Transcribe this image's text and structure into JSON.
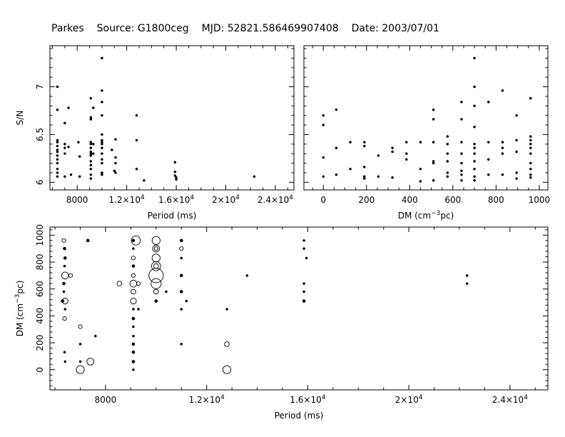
{
  "header": {
    "telescope": "Parkes",
    "source": "Source: G1800ceg",
    "mjd": "MJD: 52821.586469907408",
    "date": "Date: 2003/07/01"
  },
  "chart_data": [
    {
      "id": "snr_vs_period",
      "type": "scatter",
      "xlabel": "Period (ms)",
      "ylabel": "S/N",
      "xlim": [
        5800,
        25500
      ],
      "ylim": [
        5.92,
        7.43
      ],
      "xticks": [
        {
          "v": 8000,
          "label": "8000"
        },
        {
          "v": 12000,
          "label": "1.2×10",
          "exp": "4"
        },
        {
          "v": 16000,
          "label": "1.6×10",
          "exp": "4"
        },
        {
          "v": 20000,
          "label": "2×10",
          "exp": "4"
        },
        {
          "v": 24000,
          "label": "2.4×10",
          "exp": "4"
        }
      ],
      "yticks": [
        {
          "v": 6,
          "label": "6"
        },
        {
          "v": 6.5,
          "label": "6.5"
        },
        {
          "v": 7,
          "label": "7"
        }
      ],
      "points": [
        [
          6400,
          7.0
        ],
        [
          6400,
          6.76
        ],
        [
          6400,
          6.44
        ],
        [
          6400,
          6.42
        ],
        [
          6400,
          6.38
        ],
        [
          6400,
          6.34
        ],
        [
          6400,
          6.32
        ],
        [
          6400,
          6.28
        ],
        [
          6400,
          6.24
        ],
        [
          6400,
          6.2
        ],
        [
          6400,
          6.14
        ],
        [
          6400,
          6.1
        ],
        [
          6400,
          6.06
        ],
        [
          7000,
          6.62
        ],
        [
          7000,
          6.4
        ],
        [
          7000,
          6.36
        ],
        [
          7000,
          6.3
        ],
        [
          7000,
          6.06
        ],
        [
          7300,
          6.78
        ],
        [
          7300,
          6.37
        ],
        [
          7500,
          6.08
        ],
        [
          8100,
          6.42
        ],
        [
          8200,
          6.06
        ],
        [
          8200,
          6.27
        ],
        [
          9100,
          6.88
        ],
        [
          9100,
          6.68
        ],
        [
          9100,
          6.66
        ],
        [
          9100,
          6.42
        ],
        [
          9100,
          6.4
        ],
        [
          9100,
          6.36
        ],
        [
          9100,
          6.32
        ],
        [
          9100,
          6.3
        ],
        [
          9100,
          6.28
        ],
        [
          9100,
          6.22
        ],
        [
          9100,
          6.18
        ],
        [
          9100,
          6.14
        ],
        [
          9100,
          6.08
        ],
        [
          9100,
          6.04
        ],
        [
          9300,
          6.78
        ],
        [
          9300,
          6.4
        ],
        [
          9300,
          6.3
        ],
        [
          10000,
          7.3
        ],
        [
          10000,
          6.96
        ],
        [
          10000,
          6.84
        ],
        [
          10000,
          6.7
        ],
        [
          10000,
          6.5
        ],
        [
          10000,
          6.44
        ],
        [
          10000,
          6.42
        ],
        [
          10000,
          6.4
        ],
        [
          10000,
          6.36
        ],
        [
          10000,
          6.3
        ],
        [
          10000,
          6.24
        ],
        [
          10000,
          6.2
        ],
        [
          10000,
          6.1
        ],
        [
          10000,
          6.08
        ],
        [
          10800,
          6.34
        ],
        [
          11000,
          6.12
        ],
        [
          11100,
          6.45
        ],
        [
          11100,
          6.26
        ],
        [
          11100,
          6.2
        ],
        [
          11100,
          6.1
        ],
        [
          12800,
          6.7
        ],
        [
          12800,
          6.44
        ],
        [
          12800,
          6.14
        ],
        [
          13400,
          6.02
        ],
        [
          15900,
          6.21
        ],
        [
          15900,
          6.11
        ],
        [
          15900,
          6.07
        ],
        [
          16000,
          6.05
        ],
        [
          16000,
          6.03
        ],
        [
          22300,
          6.06
        ]
      ]
    },
    {
      "id": "snr_vs_dm",
      "type": "scatter",
      "xlabel": "DM (cm",
      "xlabel_exp": "−3",
      "xlabel_tail": "pc)",
      "ylabel": "",
      "xlim": [
        -90,
        1040
      ],
      "ylim": [
        5.92,
        7.43
      ],
      "xticks": [
        {
          "v": 0,
          "label": "0"
        },
        {
          "v": 200,
          "label": "200"
        },
        {
          "v": 400,
          "label": "400"
        },
        {
          "v": 600,
          "label": "600"
        },
        {
          "v": 800,
          "label": "800"
        },
        {
          "v": 1000,
          "label": "1000"
        }
      ],
      "yticks": [
        {
          "v": 6,
          "label": ""
        },
        {
          "v": 6.5,
          "label": ""
        },
        {
          "v": 7,
          "label": ""
        }
      ],
      "points": [
        [
          0,
          6.7
        ],
        [
          0,
          6.6
        ],
        [
          0,
          6.26
        ],
        [
          0,
          6.06
        ],
        [
          60,
          6.76
        ],
        [
          60,
          6.36
        ],
        [
          60,
          6.08
        ],
        [
          125,
          6.42
        ],
        [
          125,
          6.14
        ],
        [
          190,
          6.42
        ],
        [
          190,
          6.38
        ],
        [
          190,
          6.16
        ],
        [
          190,
          6.06
        ],
        [
          190,
          6.04
        ],
        [
          255,
          6.28
        ],
        [
          255,
          6.06
        ],
        [
          320,
          6.36
        ],
        [
          320,
          6.32
        ],
        [
          320,
          6.05
        ],
        [
          385,
          6.42
        ],
        [
          385,
          6.3
        ],
        [
          385,
          6.24
        ],
        [
          450,
          6.42
        ],
        [
          450,
          6.14
        ],
        [
          450,
          6.01
        ],
        [
          510,
          6.76
        ],
        [
          510,
          6.66
        ],
        [
          510,
          6.42
        ],
        [
          510,
          6.22
        ],
        [
          510,
          6.2
        ],
        [
          510,
          6.02
        ],
        [
          575,
          6.48
        ],
        [
          575,
          6.4
        ],
        [
          575,
          6.3
        ],
        [
          575,
          6.22
        ],
        [
          575,
          6.1
        ],
        [
          575,
          6.06
        ],
        [
          640,
          6.84
        ],
        [
          640,
          6.66
        ],
        [
          640,
          6.42
        ],
        [
          640,
          6.3
        ],
        [
          640,
          6.2
        ],
        [
          640,
          6.12
        ],
        [
          640,
          6.08
        ],
        [
          640,
          6.02
        ],
        [
          700,
          7.3
        ],
        [
          700,
          7.0
        ],
        [
          700,
          6.8
        ],
        [
          700,
          6.58
        ],
        [
          700,
          6.4
        ],
        [
          700,
          6.36
        ],
        [
          700,
          6.3
        ],
        [
          700,
          6.22
        ],
        [
          700,
          6.14
        ],
        [
          700,
          6.06
        ],
        [
          700,
          6.02
        ],
        [
          765,
          6.84
        ],
        [
          765,
          6.42
        ],
        [
          765,
          6.24
        ],
        [
          765,
          6.08
        ],
        [
          830,
          6.96
        ],
        [
          830,
          6.42
        ],
        [
          830,
          6.36
        ],
        [
          830,
          6.3
        ],
        [
          830,
          6.08
        ],
        [
          895,
          6.7
        ],
        [
          895,
          6.44
        ],
        [
          895,
          6.32
        ],
        [
          895,
          6.1
        ],
        [
          895,
          6.04
        ],
        [
          960,
          6.88
        ],
        [
          960,
          6.48
        ],
        [
          960,
          6.44
        ],
        [
          960,
          6.4
        ],
        [
          960,
          6.36
        ],
        [
          960,
          6.3
        ],
        [
          960,
          6.2
        ],
        [
          960,
          6.14
        ],
        [
          960,
          6.08
        ],
        [
          960,
          6.05
        ]
      ]
    },
    {
      "id": "dm_vs_period",
      "type": "scatter",
      "xlabel": "Period (ms)",
      "ylabel": "DM (cm",
      "ylabel_exp": "−3",
      "ylabel_tail": "pc)",
      "xlim": [
        5800,
        25500
      ],
      "ylim": [
        -150,
        1060
      ],
      "xticks": [
        {
          "v": 8000,
          "label": "8000"
        },
        {
          "v": 12000,
          "label": "1.2×10",
          "exp": "4"
        },
        {
          "v": 16000,
          "label": "1.6×10",
          "exp": "4"
        },
        {
          "v": 20000,
          "label": "2×10",
          "exp": "4"
        },
        {
          "v": 24000,
          "label": "2.4×10",
          "exp": "4"
        }
      ],
      "yticks": [
        {
          "v": 0,
          "label": "0"
        },
        {
          "v": 200,
          "label": "200"
        },
        {
          "v": 400,
          "label": "400"
        },
        {
          "v": 600,
          "label": "600"
        },
        {
          "v": 800,
          "label": "800"
        },
        {
          "v": 1000,
          "label": "1000"
        }
      ],
      "points": [
        [
          6350,
          960,
          6.3
        ],
        [
          6380,
          900,
          6.2
        ],
        [
          6400,
          830,
          6.2
        ],
        [
          6380,
          770,
          6.1
        ],
        [
          6400,
          700,
          6.6
        ],
        [
          6620,
          700,
          6.3
        ],
        [
          6350,
          640,
          6.2
        ],
        [
          6350,
          580,
          6.1
        ],
        [
          6400,
          510,
          6.5
        ],
        [
          6300,
          510,
          6.2
        ],
        [
          6400,
          450,
          6.0
        ],
        [
          6380,
          380,
          6.3
        ],
        [
          6380,
          130,
          6.1
        ],
        [
          6400,
          60,
          6.0
        ],
        [
          7000,
          320,
          6.3
        ],
        [
          7000,
          190,
          6.1
        ],
        [
          7000,
          60,
          6.1
        ],
        [
          7000,
          0,
          6.7
        ],
        [
          7400,
          60,
          6.6
        ],
        [
          7300,
          960,
          6.2
        ],
        [
          7600,
          250,
          6.0
        ],
        [
          8550,
          640,
          6.4
        ],
        [
          9200,
          960,
          6.8
        ],
        [
          9100,
          960,
          6.2
        ],
        [
          9100,
          900,
          6.1
        ],
        [
          9100,
          830,
          6.3
        ],
        [
          9100,
          770,
          6.2
        ],
        [
          9100,
          700,
          6.3
        ],
        [
          9100,
          640,
          6.6
        ],
        [
          9100,
          580,
          6.4
        ],
        [
          9100,
          510,
          6.5
        ],
        [
          9100,
          450,
          6.1
        ],
        [
          9100,
          380,
          6.2
        ],
        [
          9100,
          320,
          6.1
        ],
        [
          9100,
          250,
          6.1
        ],
        [
          9100,
          190,
          6.2
        ],
        [
          9100,
          130,
          6.2
        ],
        [
          9100,
          60,
          6.2
        ],
        [
          9100,
          0,
          6.1
        ],
        [
          9300,
          640,
          6.3
        ],
        [
          9300,
          450,
          6.1
        ],
        [
          10000,
          960,
          6.7
        ],
        [
          10000,
          900,
          6.6
        ],
        [
          10000,
          830,
          6.7
        ],
        [
          10000,
          770,
          6.8
        ],
        [
          10000,
          700,
          7.3
        ],
        [
          10000,
          640,
          6.9
        ],
        [
          10000,
          580,
          6.4
        ],
        [
          10000,
          510,
          6.2
        ],
        [
          10000,
          770,
          6.4
        ],
        [
          10000,
          900,
          6.3
        ],
        [
          10400,
          580,
          6.1
        ],
        [
          11000,
          960,
          6.2
        ],
        [
          11000,
          900,
          6.3
        ],
        [
          11000,
          830,
          6.1
        ],
        [
          11000,
          700,
          6.2
        ],
        [
          11000,
          580,
          6.2
        ],
        [
          11000,
          450,
          6.1
        ],
        [
          11000,
          190,
          6.0
        ],
        [
          11200,
          510,
          6.0
        ],
        [
          12800,
          190,
          6.4
        ],
        [
          12800,
          0,
          6.7
        ],
        [
          12800,
          450,
          6.1
        ],
        [
          13600,
          700,
          6.0
        ],
        [
          15850,
          960,
          6.1
        ],
        [
          15850,
          900,
          6.0
        ],
        [
          15950,
          830,
          6.0
        ],
        [
          15850,
          640,
          6.1
        ],
        [
          15850,
          580,
          6.0
        ],
        [
          15850,
          510,
          6.2
        ],
        [
          22300,
          700,
          6.1
        ],
        [
          22300,
          640,
          6.0
        ]
      ]
    }
  ]
}
